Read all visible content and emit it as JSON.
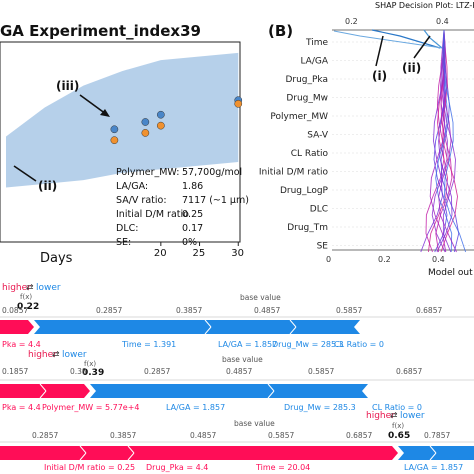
{
  "panel_a": {
    "title": "GA Experiment_index39",
    "xlabel": "Days",
    "annotations": [
      "(iii)",
      "(ii)"
    ],
    "table": [
      {
        "label": "Polymer_MW:",
        "value": "57,700g/mol"
      },
      {
        "label": "LA/GA:",
        "value": "1.86"
      },
      {
        "label": "SA/V ratio:",
        "value": "7117 (~1 µm)"
      },
      {
        "label": "Initial D/M ratio",
        "value": "0.25"
      },
      {
        "label": "DLC:",
        "value": "0.17"
      },
      {
        "label": "SE:",
        "value": "0%"
      }
    ]
  },
  "panel_b": {
    "label": "(B)",
    "title": "SHAP Decision Plot: LTZ-P",
    "top_ticks": [
      "0.2",
      "0.4"
    ],
    "bottom_ticks": [
      "0",
      "0.2",
      "0.4"
    ],
    "xlabel": "Model out",
    "annotations": [
      "(i)",
      "(ii)"
    ],
    "features": [
      "Time",
      "LA/GA",
      "Drug_Pka",
      "Drug_Mw",
      "Polymer_MW",
      "SA-V",
      "CL Ratio",
      "Initial D/M ratio",
      "Drug_LogP",
      "DLC",
      "Drug_Tm",
      "SE"
    ]
  },
  "force_plots": [
    {
      "higher": "higher",
      "lower": "lower",
      "fx": "f(x)",
      "value": "0.22",
      "base": "base value",
      "ticks": [
        "0.0857",
        "0.2857",
        "0.3857",
        "0.4857",
        "0.5857",
        "0.6857"
      ],
      "labels": [
        "Pka = 4.4",
        "Time = 1.391",
        "LA/GA = 1.857",
        "Drug_Mw = 285.3",
        "CL Ratio = 0"
      ]
    },
    {
      "higher": "higher",
      "lower": "lower",
      "fx": "f(x)",
      "value": "0.39",
      "value_prefix": "0.38",
      "base": "base value",
      "ticks": [
        "0.1857",
        "0.2857",
        "0.4857",
        "0.5857",
        "0.6857"
      ],
      "labels": [
        "Pka = 4.4",
        "Polymer_MW = 5.77e+4",
        "LA/GA = 1.857",
        "Drug_Mw = 285.3",
        "CL Ratio = 0"
      ]
    },
    {
      "higher": "higher",
      "lower": "lower",
      "fx": "f(x)",
      "value": "0.65",
      "base": "base value",
      "ticks": [
        "0.2857",
        "0.3857",
        "0.4857",
        "0.5857",
        "0.6857",
        "0.7857"
      ],
      "labels": [
        "Initial D/M ratio = 0.25",
        "Drug_Pka = 4.4",
        "Time = 20.04",
        "LA/GA = 1.857"
      ]
    }
  ],
  "chart_data": {
    "type": "scatter",
    "title": "GA Experiment_index39",
    "xlabel": "Days",
    "x_ticks": [
      20,
      25,
      30
    ],
    "xlim": [
      0,
      31
    ],
    "series": [
      {
        "color": "#4a86c8",
        "x": [
          14,
          18,
          20,
          30
        ],
        "y": [
          0.62,
          0.66,
          0.7,
          0.78
        ]
      },
      {
        "color": "#f0912f",
        "x": [
          14,
          18,
          20,
          30
        ],
        "y": [
          0.56,
          0.6,
          0.64,
          0.76
        ]
      }
    ],
    "band": {
      "x": [
        0,
        5,
        10,
        15,
        20,
        25,
        30
      ],
      "lower": [
        0.3,
        0.32,
        0.34,
        0.38,
        0.4,
        0.42,
        0.44
      ],
      "upper": [
        0.58,
        0.74,
        0.86,
        0.94,
        1.0,
        1.02,
        1.04
      ]
    },
    "ylim": [
      0,
      1.1
    ]
  }
}
